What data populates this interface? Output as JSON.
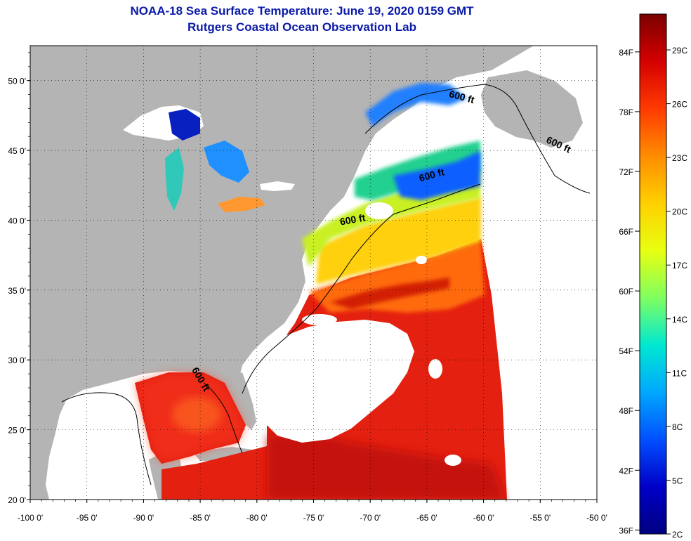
{
  "header": {
    "title_line1": "NOAA-18 Sea Surface Temperature:  June 19, 2020 0159 GMT",
    "title_line2": "Rutgers Coastal Ocean Observation Lab"
  },
  "map": {
    "lon_range": [
      -100,
      -50
    ],
    "lat_range": [
      20,
      52.5
    ],
    "lon_ticks": [
      {
        "value": -100,
        "label": "-100 0'"
      },
      {
        "value": -95,
        "label": "-95 0'"
      },
      {
        "value": -90,
        "label": "-90 0'"
      },
      {
        "value": -85,
        "label": "-85 0'"
      },
      {
        "value": -80,
        "label": "-80 0'"
      },
      {
        "value": -75,
        "label": "-75 0'"
      },
      {
        "value": -70,
        "label": "-70 0'"
      },
      {
        "value": -65,
        "label": "-65 0'"
      },
      {
        "value": -60,
        "label": "-60 0'"
      },
      {
        "value": -55,
        "label": "-55 0'"
      },
      {
        "value": -50,
        "label": "-50 0'"
      }
    ],
    "lat_ticks": [
      {
        "value": 50,
        "label": "50 0'"
      },
      {
        "value": 45,
        "label": "45 0'"
      },
      {
        "value": 40,
        "label": "40 0'"
      },
      {
        "value": 35,
        "label": "35 0'"
      },
      {
        "value": 30,
        "label": "30 0'"
      },
      {
        "value": 25,
        "label": "25 0'"
      },
      {
        "value": 20,
        "label": "20 0'"
      }
    ],
    "contour_labels": [
      {
        "text": "600 ft",
        "lon": -62,
        "lat": 48.6,
        "angle": 15
      },
      {
        "text": "600 ft",
        "lon": -53.5,
        "lat": 45.2,
        "angle": 25
      },
      {
        "text": "600 ft",
        "lon": -64.5,
        "lat": 43.0,
        "angle": -15
      },
      {
        "text": "600 ft",
        "lon": -71.5,
        "lat": 39.8,
        "angle": -10
      },
      {
        "text": "600 ft",
        "lon": -85.2,
        "lat": 28.5,
        "angle": 60
      }
    ],
    "colors": {
      "land": "#b4b4b4",
      "cloud": "#ffffff",
      "background": "#ffffff",
      "contour": "#000000"
    }
  },
  "colorbar": {
    "fahrenheit_labels": [
      {
        "value": 84,
        "label": "84F"
      },
      {
        "value": 78,
        "label": "78F"
      },
      {
        "value": 72,
        "label": "72F"
      },
      {
        "value": 66,
        "label": "66F"
      },
      {
        "value": 60,
        "label": "60F"
      },
      {
        "value": 54,
        "label": "54F"
      },
      {
        "value": 48,
        "label": "48F"
      },
      {
        "value": 42,
        "label": "42F"
      },
      {
        "value": 36,
        "label": "36F"
      }
    ],
    "celsius_labels": [
      {
        "value": 29,
        "label": "29C"
      },
      {
        "value": 26,
        "label": "26C"
      },
      {
        "value": 23,
        "label": "23C"
      },
      {
        "value": 20,
        "label": "20C"
      },
      {
        "value": 17,
        "label": "17C"
      },
      {
        "value": 14,
        "label": "14C"
      },
      {
        "value": 11,
        "label": "11C"
      },
      {
        "value": 8,
        "label": "8C"
      },
      {
        "value": 5,
        "label": "5C"
      },
      {
        "value": 2,
        "label": "2C"
      }
    ],
    "celsius_range": [
      2,
      31
    ],
    "gradient": [
      "#7a0000",
      "#d40000",
      "#ff3a00",
      "#ff8c00",
      "#ffd000",
      "#e8ff10",
      "#80ff60",
      "#00e8d0",
      "#00a8ff",
      "#0050ff",
      "#0000c8",
      "#000080"
    ]
  }
}
